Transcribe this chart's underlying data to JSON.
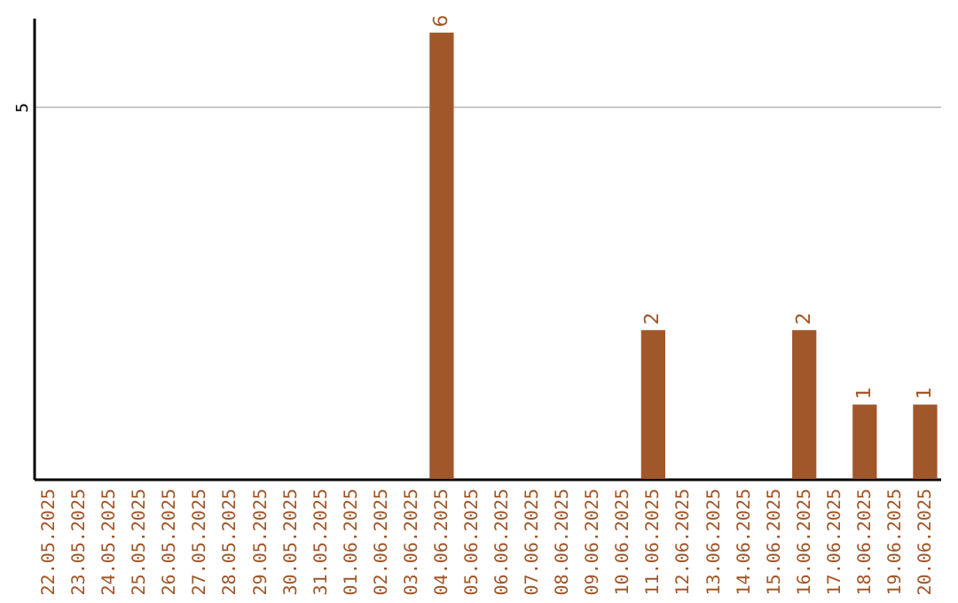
{
  "chart_data": {
    "type": "bar",
    "categories": [
      "22.05.2025",
      "23.05.2025",
      "24.05.2025",
      "25.05.2025",
      "26.05.2025",
      "27.05.2025",
      "28.05.2025",
      "29.05.2025",
      "30.05.2025",
      "31.05.2025",
      "01.06.2025",
      "02.06.2025",
      "03.06.2025",
      "04.06.2025",
      "05.06.2025",
      "06.06.2025",
      "07.06.2025",
      "08.06.2025",
      "09.06.2025",
      "10.06.2025",
      "11.06.2025",
      "12.06.2025",
      "13.06.2025",
      "14.06.2025",
      "15.06.2025",
      "16.06.2025",
      "17.06.2025",
      "18.06.2025",
      "19.06.2025",
      "20.06.2025"
    ],
    "values": [
      null,
      null,
      null,
      null,
      null,
      null,
      null,
      null,
      null,
      null,
      null,
      null,
      null,
      6,
      null,
      null,
      null,
      null,
      null,
      null,
      2,
      null,
      null,
      null,
      null,
      2,
      null,
      1,
      null,
      1
    ],
    "data_labels": true,
    "color": "#a0572a",
    "ylim": [
      0,
      6.2
    ],
    "yticks": [
      5
    ],
    "grid": "y"
  }
}
